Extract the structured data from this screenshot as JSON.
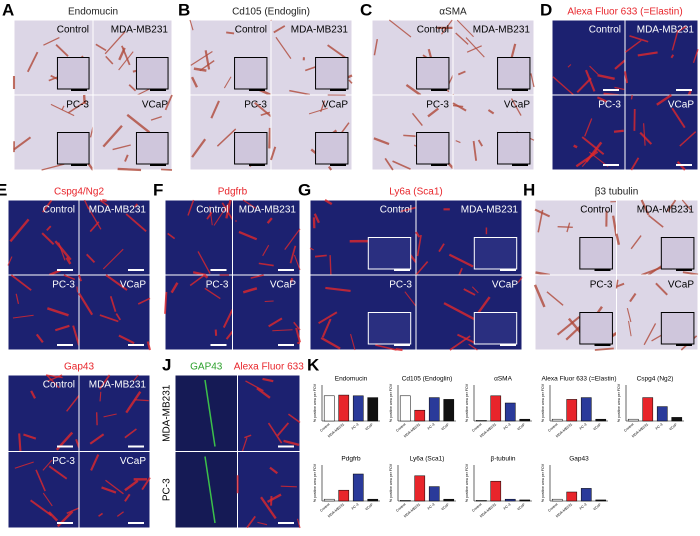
{
  "panels": [
    {
      "letter": "A",
      "title": "Endomucin",
      "kind": "ihc",
      "labels": [
        "Control",
        "MDA-MB231",
        "PC-3",
        "VCaP"
      ]
    },
    {
      "letter": "B",
      "title": "Cd105 (Endoglin)",
      "kind": "ihc",
      "labels": [
        "Control",
        "MDA-MB231",
        "PC-3",
        "VCaP"
      ]
    },
    {
      "letter": "C",
      "title": "αSMA",
      "kind": "ihc",
      "labels": [
        "Control",
        "MDA-MB231",
        "PC-3",
        "VCaP"
      ]
    },
    {
      "letter": "D",
      "title": "Alexa Fluor 633 (=Elastin)",
      "kind": "fluo",
      "labels": [
        "Control",
        "MDA-MB231",
        "PC-3",
        "VCaP"
      ]
    },
    {
      "letter": "E",
      "title": "Cspg4/Ng2",
      "kind": "fluo",
      "labels": [
        "Control",
        "MDA-MB231",
        "PC-3",
        "VCaP"
      ]
    },
    {
      "letter": "F",
      "title": "Pdgfrb",
      "kind": "fluo",
      "labels": [
        "Control",
        "MDA-MB231",
        "PC-3",
        "VCaP"
      ]
    },
    {
      "letter": "G",
      "title": "Ly6a (Sca1)",
      "kind": "fluo",
      "labels": [
        "Control",
        "MDA-MB231",
        "PC-3",
        "VCaP"
      ]
    },
    {
      "letter": "H",
      "title": "β3 tubulin",
      "kind": "ihc",
      "labels": [
        "Control",
        "MDA-MB231",
        "PC-3",
        "VCaP"
      ]
    },
    {
      "letter": "I",
      "title": "Gap43",
      "kind": "fluo",
      "labels": [
        "Control",
        "MDA-MB231",
        "PC-3",
        "VCaP"
      ]
    }
  ],
  "panel_j": {
    "letter": "J",
    "channels": [
      "GAP43",
      "Alexa Fluor 633"
    ],
    "rows": [
      "MDA-MB231",
      "PC-3"
    ]
  },
  "panel_k": {
    "letter": "K",
    "y_label": "% positive area per FOV",
    "categories": [
      "Control",
      "MDA-MB231",
      "PC-3",
      "VCaP"
    ],
    "colors": [
      "#ffffff",
      "#e8252b",
      "#2a3a9a",
      "#111111"
    ],
    "charts": [
      {
        "title": "Endomucin",
        "ylim": [
          0,
          100
        ],
        "values": [
          70,
          72,
          70,
          65
        ]
      },
      {
        "title": "Cd105 (Endoglin)",
        "ylim": [
          0,
          100
        ],
        "values": [
          70,
          30,
          65,
          60
        ]
      },
      {
        "title": "αSMA",
        "ylim": [
          0,
          100
        ],
        "values": [
          2,
          70,
          50,
          5
        ]
      },
      {
        "title": "Alexa Fluor 633 (=Elastin)",
        "ylim": [
          0,
          100
        ],
        "values": [
          5,
          60,
          65,
          5
        ]
      },
      {
        "title": "Cspg4 (Ng2)",
        "ylim": [
          0,
          100
        ],
        "values": [
          5,
          65,
          40,
          10
        ]
      },
      {
        "title": "Pdgfrb",
        "ylim": [
          0,
          100
        ],
        "values": [
          5,
          30,
          75,
          5
        ]
      },
      {
        "title": "Ly6a (Sca1)",
        "ylim": [
          0,
          100
        ],
        "values": [
          2,
          70,
          40,
          5
        ]
      },
      {
        "title": "β-tubulin",
        "ylim": [
          0,
          100
        ],
        "values": [
          2,
          55,
          5,
          3
        ]
      },
      {
        "title": "Gap43",
        "ylim": [
          0,
          100
        ],
        "values": [
          5,
          25,
          35,
          3
        ]
      }
    ]
  }
}
